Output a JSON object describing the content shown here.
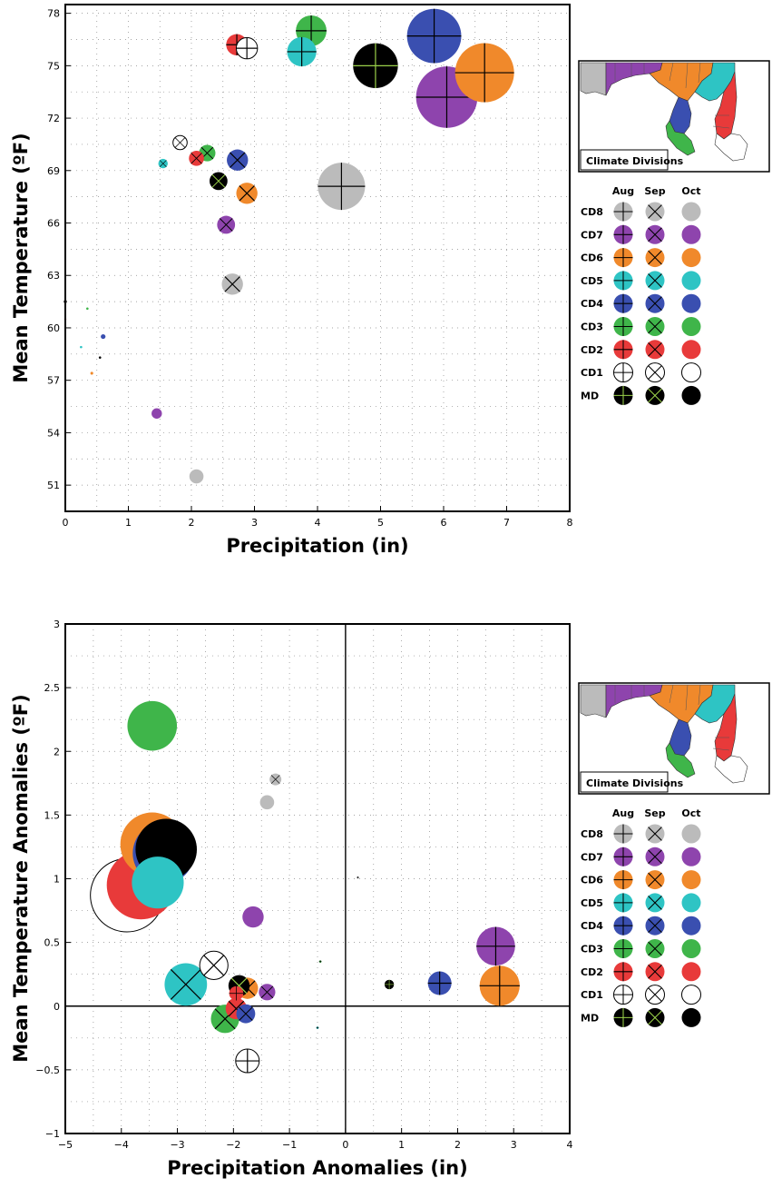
{
  "chart_data": [
    {
      "type": "scatter",
      "title": "",
      "xlabel": "Precipitation (in)",
      "ylabel": "Mean Temperature (ºF)",
      "xlim": [
        0,
        8
      ],
      "ylim": [
        49.5,
        78.5
      ],
      "x_ticks": [
        0,
        1,
        2,
        3,
        4,
        5,
        6,
        7,
        8
      ],
      "y_ticks": [
        51,
        54,
        57,
        60,
        63,
        66,
        69,
        72,
        75,
        78
      ],
      "x_tick_labels": [
        "0",
        "1",
        "2",
        "3",
        "4",
        "5",
        "6",
        "7",
        "8"
      ],
      "y_tick_labels": [
        "51",
        "54",
        "57",
        "60",
        "63",
        "66",
        "69",
        "72",
        "75",
        "78"
      ],
      "grid": true,
      "legend": "right",
      "size_encoding": "bubble size",
      "series": [
        {
          "name": "CD8",
          "color": "#bbbbbb",
          "points": [
            {
              "month": "Aug",
              "x": 4.38,
              "y": 68.1,
              "size": 1.0
            },
            {
              "month": "Sep",
              "x": 2.65,
              "y": 62.5,
              "size": 0.45
            },
            {
              "month": "Oct",
              "x": 2.08,
              "y": 51.5,
              "size": 0.3
            }
          ]
        },
        {
          "name": "CD7",
          "color": "#8e44ad",
          "points": [
            {
              "month": "Aug",
              "x": 6.05,
              "y": 73.2,
              "size": 1.3
            },
            {
              "month": "Sep",
              "x": 2.55,
              "y": 65.9,
              "size": 0.38
            },
            {
              "month": "Oct",
              "x": 1.45,
              "y": 55.1,
              "size": 0.22
            }
          ]
        },
        {
          "name": "CD6",
          "color": "#f0892b",
          "points": [
            {
              "month": "Aug",
              "x": 6.65,
              "y": 74.6,
              "size": 1.25
            },
            {
              "month": "Sep",
              "x": 2.88,
              "y": 67.7,
              "size": 0.45
            },
            {
              "month": "Oct",
              "x": 0.42,
              "y": 57.4,
              "size": 0.06
            }
          ]
        },
        {
          "name": "CD5",
          "color": "#2ec4c4",
          "points": [
            {
              "month": "Aug",
              "x": 3.75,
              "y": 75.8,
              "size": 0.62
            },
            {
              "month": "Sep",
              "x": 1.55,
              "y": 69.4,
              "size": 0.2
            },
            {
              "month": "Oct",
              "x": 0.25,
              "y": 58.9,
              "size": 0.05
            }
          ]
        },
        {
          "name": "CD4",
          "color": "#3a4fb0",
          "points": [
            {
              "month": "Aug",
              "x": 5.85,
              "y": 76.7,
              "size": 1.15
            },
            {
              "month": "Sep",
              "x": 2.73,
              "y": 69.6,
              "size": 0.45
            },
            {
              "month": "Oct",
              "x": 0.6,
              "y": 59.5,
              "size": 0.1
            }
          ]
        },
        {
          "name": "CD3",
          "color": "#3fb54a",
          "points": [
            {
              "month": "Aug",
              "x": 3.9,
              "y": 77.0,
              "size": 0.65
            },
            {
              "month": "Sep",
              "x": 2.25,
              "y": 70.0,
              "size": 0.35
            },
            {
              "month": "Oct",
              "x": 0.35,
              "y": 61.1,
              "size": 0.05
            }
          ]
        },
        {
          "name": "CD2",
          "color": "#e83a3a",
          "points": [
            {
              "month": "Aug",
              "x": 2.72,
              "y": 76.2,
              "size": 0.45
            },
            {
              "month": "Sep",
              "x": 2.08,
              "y": 69.7,
              "size": 0.32
            },
            {
              "month": "Oct",
              "x": 0.0,
              "y": 60.5,
              "size": 0.03
            }
          ]
        },
        {
          "name": "CD1",
          "color": "#ffffff",
          "points": [
            {
              "month": "Aug",
              "x": 2.88,
              "y": 76.0,
              "size": 0.45
            },
            {
              "month": "Sep",
              "x": 1.82,
              "y": 70.6,
              "size": 0.3
            },
            {
              "month": "Oct",
              "x": 0.0,
              "y": 61.5,
              "size": 0.0
            }
          ]
        },
        {
          "name": "MD",
          "color": "#000000",
          "points": [
            {
              "month": "Aug",
              "x": 4.92,
              "y": 75.0,
              "size": 0.95
            },
            {
              "month": "Sep",
              "x": 2.43,
              "y": 68.4,
              "size": 0.38
            },
            {
              "month": "Oct",
              "x": 0.55,
              "y": 58.3,
              "size": 0.05
            }
          ]
        }
      ]
    },
    {
      "type": "scatter",
      "title": "",
      "xlabel": "Precipitation Anomalies (in)",
      "ylabel": "Mean Temperature Anomalies (ºF)",
      "xlim": [
        -5,
        4
      ],
      "ylim": [
        -1,
        3
      ],
      "x_ticks": [
        -5,
        -4,
        -3,
        -2,
        -1,
        0,
        1,
        2,
        3,
        4
      ],
      "y_ticks": [
        -1,
        -0.5,
        0,
        0.5,
        1,
        1.5,
        2,
        2.5,
        3
      ],
      "x_tick_labels": [
        "−5",
        "−4",
        "−3",
        "−2",
        "−1",
        "0",
        "1",
        "2",
        "3",
        "4"
      ],
      "y_tick_labels": [
        "−1",
        "−0.5",
        "0",
        "0.5",
        "1",
        "1.5",
        "2",
        "2.5",
        "3"
      ],
      "grid": true,
      "zero_lines": true,
      "legend": "right",
      "size_encoding": "bubble size",
      "series": [
        {
          "name": "CD8",
          "color": "#bbbbbb",
          "points": [
            {
              "month": "Aug",
              "x": 0.22,
              "y": 1.01,
              "size": 0.03
            },
            {
              "month": "Sep",
              "x": -1.25,
              "y": 1.78,
              "size": 0.25
            },
            {
              "month": "Oct",
              "x": -1.4,
              "y": 1.6,
              "size": 0.3
            }
          ]
        },
        {
          "name": "CD7",
          "color": "#8e44ad",
          "points": [
            {
              "month": "Aug",
              "x": 2.68,
              "y": 0.47,
              "size": 0.82
            },
            {
              "month": "Sep",
              "x": -1.4,
              "y": 0.11,
              "size": 0.35
            },
            {
              "month": "Oct",
              "x": -1.65,
              "y": 0.7,
              "size": 0.45
            }
          ]
        },
        {
          "name": "CD6",
          "color": "#f0892b",
          "points": [
            {
              "month": "Aug",
              "x": 2.75,
              "y": 0.16,
              "size": 0.85
            },
            {
              "month": "Sep",
              "x": -1.75,
              "y": 0.14,
              "size": 0.45
            },
            {
              "month": "Oct",
              "x": -3.45,
              "y": 1.27,
              "size": 1.35
            }
          ]
        },
        {
          "name": "CD5",
          "color": "#2ec4c4",
          "points": [
            {
              "month": "Aug",
              "x": -0.5,
              "y": -0.17,
              "size": 0.05
            },
            {
              "month": "Sep",
              "x": -2.85,
              "y": 0.17,
              "size": 0.9
            },
            {
              "month": "Oct",
              "x": -3.35,
              "y": 0.97,
              "size": 1.1
            }
          ]
        },
        {
          "name": "CD4",
          "color": "#3a4fb0",
          "points": [
            {
              "month": "Aug",
              "x": 1.68,
              "y": 0.18,
              "size": 0.5
            },
            {
              "month": "Sep",
              "x": -1.78,
              "y": -0.06,
              "size": 0.4
            },
            {
              "month": "Oct",
              "x": -3.25,
              "y": 1.2,
              "size": 1.3
            }
          ]
        },
        {
          "name": "CD3",
          "color": "#3fb54a",
          "points": [
            {
              "month": "Aug",
              "x": -0.45,
              "y": 0.35,
              "size": 0.05
            },
            {
              "month": "Sep",
              "x": -2.15,
              "y": -0.1,
              "size": 0.6
            },
            {
              "month": "Oct",
              "x": -3.45,
              "y": 2.2,
              "size": 1.05
            }
          ]
        },
        {
          "name": "CD2",
          "color": "#e83a3a",
          "points": [
            {
              "month": "Aug",
              "x": -1.95,
              "y": 0.1,
              "size": 0.3
            },
            {
              "month": "Sep",
              "x": -1.95,
              "y": -0.02,
              "size": 0.45
            },
            {
              "month": "Oct",
              "x": -3.65,
              "y": 0.95,
              "size": 1.45
            }
          ]
        },
        {
          "name": "CD1",
          "color": "#ffffff",
          "points": [
            {
              "month": "Aug",
              "x": -1.75,
              "y": -0.43,
              "size": 0.5
            },
            {
              "month": "Sep",
              "x": -2.35,
              "y": 0.32,
              "size": 0.6
            },
            {
              "month": "Oct",
              "x": -3.9,
              "y": 0.87,
              "size": 1.55
            }
          ]
        },
        {
          "name": "MD",
          "color": "#000000",
          "points": [
            {
              "month": "Aug",
              "x": 0.78,
              "y": 0.17,
              "size": 0.2
            },
            {
              "month": "Sep",
              "x": -1.9,
              "y": 0.16,
              "size": 0.45
            },
            {
              "month": "Oct",
              "x": -3.2,
              "y": 1.23,
              "size": 1.3
            }
          ]
        }
      ]
    }
  ],
  "legend": {
    "month_headers": [
      "Aug",
      "Sep",
      "Oct"
    ],
    "month_markers": {
      "Aug": "plus",
      "Sep": "cross",
      "Oct": "solid"
    },
    "rows": [
      {
        "label": "CD8",
        "color": "#bbbbbb"
      },
      {
        "label": "CD7",
        "color": "#8e44ad"
      },
      {
        "label": "CD6",
        "color": "#f0892b"
      },
      {
        "label": "CD5",
        "color": "#2ec4c4"
      },
      {
        "label": "CD4",
        "color": "#3a4fb0"
      },
      {
        "label": "CD3",
        "color": "#3fb54a"
      },
      {
        "label": "CD2",
        "color": "#e83a3a"
      },
      {
        "label": "CD1",
        "color": "#ffffff"
      },
      {
        "label": "MD",
        "color": "#000000"
      }
    ]
  },
  "map": {
    "caption": "Climate Divisions",
    "division_colors": {
      "CD8": "#bbbbbb",
      "CD7": "#8e44ad",
      "CD6": "#f0892b",
      "CD5": "#2ec4c4",
      "CD4": "#3a4fb0",
      "CD3": "#3fb54a",
      "CD2": "#e83a3a",
      "CD1": "#ffffff"
    }
  }
}
